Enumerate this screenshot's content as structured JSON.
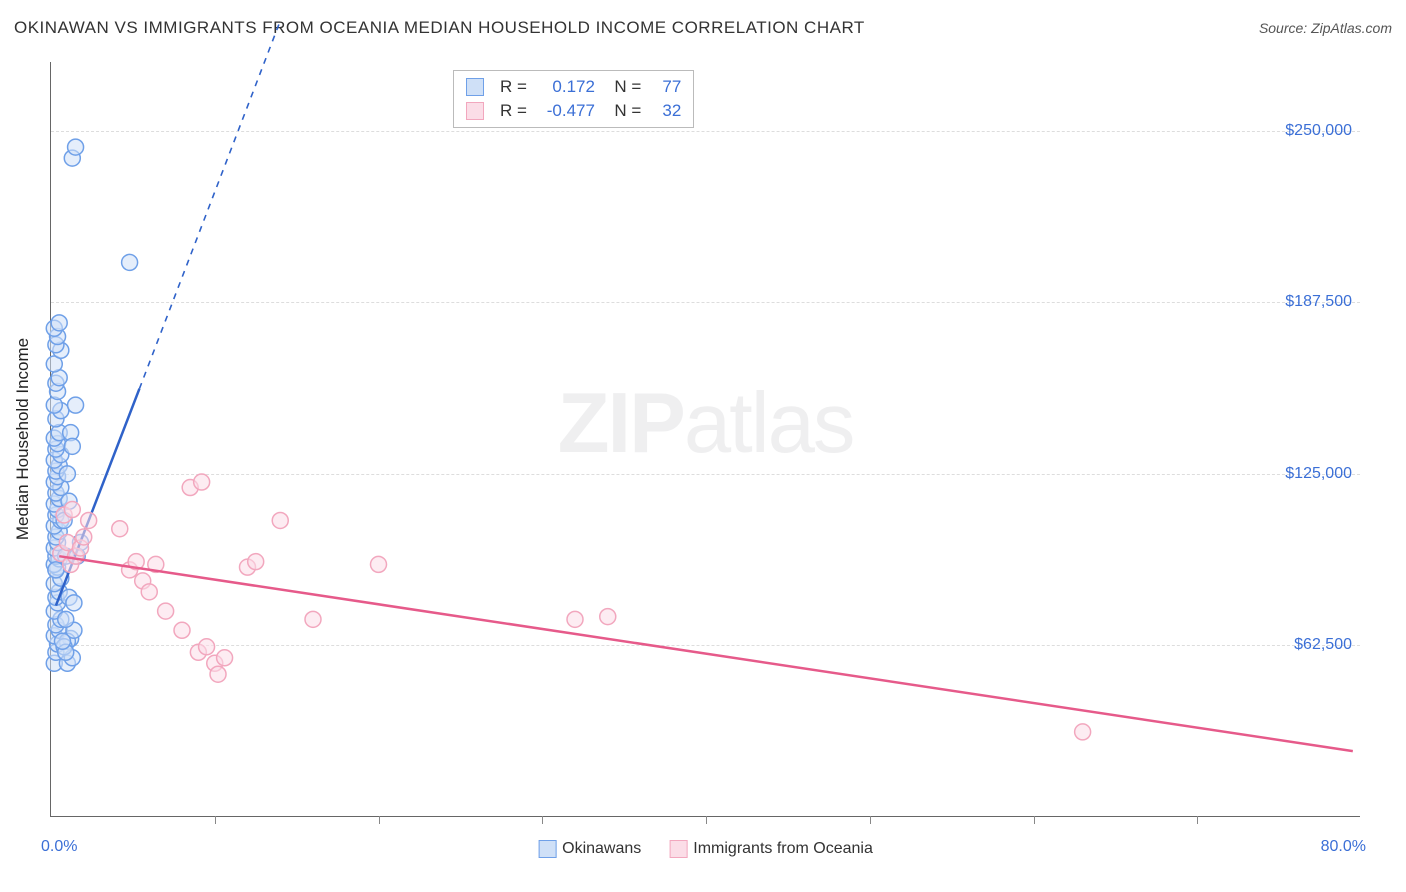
{
  "header": {
    "title": "OKINAWAN VS IMMIGRANTS FROM OCEANIA MEDIAN HOUSEHOLD INCOME CORRELATION CHART",
    "source_prefix": "Source: ",
    "source": "ZipAtlas.com"
  },
  "chart": {
    "type": "scatter",
    "yaxis_title": "Median Household Income",
    "watermark_a": "ZIP",
    "watermark_b": "atlas",
    "xlim": [
      0,
      80
    ],
    "ylim": [
      0,
      275000
    ],
    "x_unit": "%",
    "xlabel_min": "0.0%",
    "xlabel_max": "80.0%",
    "xtick_positions": [
      10,
      20,
      30,
      40,
      50,
      60,
      70
    ],
    "yticks": [
      {
        "v": 62500,
        "label": "$62,500"
      },
      {
        "v": 125000,
        "label": "$125,000"
      },
      {
        "v": 187500,
        "label": "$187,500"
      },
      {
        "v": 250000,
        "label": "$250,000"
      }
    ],
    "grid_color": "#dddddd",
    "axis_color": "#666666",
    "background_color": "#ffffff",
    "marker_radius": 8,
    "marker_stroke_width": 1.5,
    "marker_fill_opacity": 0.25,
    "trend_line_width": 2.5,
    "trend_dash_width": 1.6,
    "series": [
      {
        "key": "okinawans",
        "label": "Okinawans",
        "color": "#6fa0e8",
        "fill": "#cfe0f7",
        "line_color": "#2f62c9",
        "R": "0.172",
        "N": "77",
        "trend_solid": {
          "x1": 0.3,
          "y1": 77000,
          "x2": 5.4,
          "y2": 156000
        },
        "trend_dash": {
          "x1": 5.4,
          "y1": 156000,
          "x2": 14.0,
          "y2": 290000
        },
        "points": [
          [
            0.2,
            56000
          ],
          [
            0.3,
            60000
          ],
          [
            0.4,
            63000
          ],
          [
            0.2,
            66000
          ],
          [
            0.5,
            68000
          ],
          [
            0.3,
            70000
          ],
          [
            0.6,
            72000
          ],
          [
            0.2,
            75000
          ],
          [
            0.4,
            78000
          ],
          [
            0.3,
            80000
          ],
          [
            0.5,
            82000
          ],
          [
            0.2,
            85000
          ],
          [
            0.6,
            87000
          ],
          [
            0.3,
            90000
          ],
          [
            0.4,
            91000
          ],
          [
            0.2,
            92000
          ],
          [
            0.5,
            94000
          ],
          [
            0.3,
            95000
          ],
          [
            0.6,
            96000
          ],
          [
            0.2,
            98000
          ],
          [
            0.4,
            100000
          ],
          [
            0.3,
            102000
          ],
          [
            0.5,
            104000
          ],
          [
            0.2,
            106000
          ],
          [
            0.6,
            108000
          ],
          [
            0.3,
            110000
          ],
          [
            0.4,
            112000
          ],
          [
            0.2,
            114000
          ],
          [
            0.5,
            116000
          ],
          [
            0.3,
            118000
          ],
          [
            0.6,
            120000
          ],
          [
            0.2,
            122000
          ],
          [
            0.4,
            124000
          ],
          [
            0.3,
            126000
          ],
          [
            0.5,
            128000
          ],
          [
            0.2,
            130000
          ],
          [
            0.6,
            132000
          ],
          [
            0.3,
            134000
          ],
          [
            0.4,
            136000
          ],
          [
            0.2,
            138000
          ],
          [
            0.5,
            140000
          ],
          [
            0.3,
            145000
          ],
          [
            0.6,
            148000
          ],
          [
            0.2,
            150000
          ],
          [
            0.4,
            155000
          ],
          [
            0.3,
            158000
          ],
          [
            0.5,
            160000
          ],
          [
            0.2,
            165000
          ],
          [
            0.6,
            170000
          ],
          [
            0.3,
            172000
          ],
          [
            0.4,
            175000
          ],
          [
            0.2,
            178000
          ],
          [
            0.5,
            180000
          ],
          [
            0.3,
            90000
          ],
          [
            0.9,
            95000
          ],
          [
            1.0,
            56000
          ],
          [
            1.2,
            65000
          ],
          [
            1.0,
            64000
          ],
          [
            1.3,
            58000
          ],
          [
            1.1,
            80000
          ],
          [
            0.8,
            62000
          ],
          [
            1.4,
            68000
          ],
          [
            0.9,
            72000
          ],
          [
            1.3,
            240000
          ],
          [
            1.5,
            244000
          ],
          [
            4.8,
            202000
          ],
          [
            1.6,
            95000
          ],
          [
            1.8,
            100000
          ],
          [
            1.2,
            140000
          ],
          [
            1.5,
            150000
          ],
          [
            0.8,
            108000
          ],
          [
            1.0,
            125000
          ],
          [
            1.3,
            135000
          ],
          [
            1.1,
            115000
          ],
          [
            0.9,
            60000
          ],
          [
            0.7,
            64000
          ],
          [
            1.4,
            78000
          ]
        ]
      },
      {
        "key": "oceania",
        "label": "Immigrants from Oceania",
        "color": "#f2a7be",
        "fill": "#fbdde7",
        "line_color": "#e65a8a",
        "R": "-0.477",
        "N": "32",
        "trend_solid": {
          "x1": 0.5,
          "y1": 95000,
          "x2": 79.5,
          "y2": 24000
        },
        "trend_dash": null,
        "points": [
          [
            0.6,
            96000
          ],
          [
            1.0,
            100000
          ],
          [
            1.2,
            92000
          ],
          [
            1.5,
            95000
          ],
          [
            1.8,
            98000
          ],
          [
            2.0,
            102000
          ],
          [
            2.3,
            108000
          ],
          [
            0.8,
            110000
          ],
          [
            1.3,
            112000
          ],
          [
            4.2,
            105000
          ],
          [
            4.8,
            90000
          ],
          [
            5.2,
            93000
          ],
          [
            5.6,
            86000
          ],
          [
            6.4,
            92000
          ],
          [
            6.0,
            82000
          ],
          [
            8.5,
            120000
          ],
          [
            9.2,
            122000
          ],
          [
            12.0,
            91000
          ],
          [
            12.5,
            93000
          ],
          [
            14.0,
            108000
          ],
          [
            16.0,
            72000
          ],
          [
            7.0,
            75000
          ],
          [
            8.0,
            68000
          ],
          [
            9.0,
            60000
          ],
          [
            9.5,
            62000
          ],
          [
            10.0,
            56000
          ],
          [
            10.6,
            58000
          ],
          [
            10.2,
            52000
          ],
          [
            20.0,
            92000
          ],
          [
            32.0,
            72000
          ],
          [
            34.0,
            73000
          ],
          [
            63.0,
            31000
          ]
        ]
      }
    ],
    "legend": {
      "items": [
        {
          "key": "okinawans"
        },
        {
          "key": "oceania"
        }
      ]
    }
  }
}
